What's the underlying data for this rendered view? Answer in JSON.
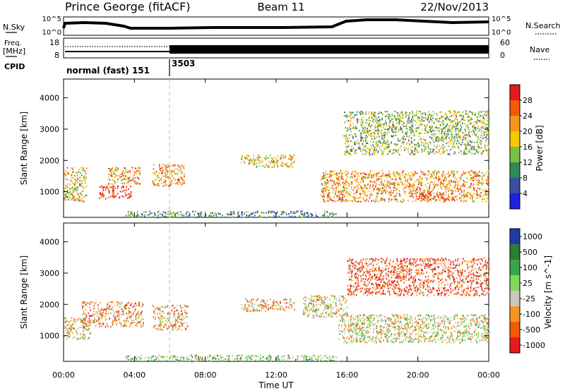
{
  "header": {
    "station": "Prince George (fitACF)",
    "beam": "Beam 11",
    "date": "22/Nov/2013"
  },
  "strips": {
    "nsky_label": "N.Sky",
    "nsearch_label": "N.Search",
    "freq_label_1": "Freq.",
    "freq_label_2": "[MHz]",
    "nave_label": "Nave",
    "cpid_label": "CPID",
    "count_ticks": [
      "10^5",
      "10^0"
    ],
    "freq_ticks": [
      "18",
      "8"
    ],
    "nave_ticks": [
      "60",
      "0"
    ],
    "cpid_1": "normal (fast) 151",
    "cpid_2": "3503"
  },
  "chart_data": [
    {
      "type": "heatmap",
      "title": "",
      "xlabel": "Time UT",
      "ylabel": "Slant Range [km]",
      "colorbar_label": "Power [dB]",
      "x_ticks": [
        "00:00",
        "04:00",
        "08:00",
        "12:00",
        "16:00",
        "20:00",
        "00:00"
      ],
      "y_ticks": [
        1000,
        2000,
        3000,
        4000
      ],
      "xlim_hours": [
        0,
        24
      ],
      "ylim_km": [
        180,
        4600
      ],
      "colorbar_ticks": [
        "28",
        "24",
        "20",
        "16",
        "12",
        "8",
        "4"
      ],
      "colorbar_colors": [
        "#e41a1c",
        "#f05a0a",
        "#f7941d",
        "#f5c800",
        "#7ac143",
        "#2e8b57",
        "#3a4fa0",
        "#2020e0"
      ],
      "scatter_regions": [
        {
          "t": [
            0.0,
            1.3
          ],
          "r": [
            700,
            1800
          ],
          "level": 4
        },
        {
          "t": [
            2.0,
            3.8
          ],
          "r": [
            800,
            1200
          ],
          "level": 7
        },
        {
          "t": [
            2.5,
            4.3
          ],
          "r": [
            1250,
            1800
          ],
          "level": 5
        },
        {
          "t": [
            5.0,
            6.8
          ],
          "r": [
            1200,
            1900
          ],
          "level": 5
        },
        {
          "t": [
            14.5,
            24.0
          ],
          "r": [
            700,
            1700
          ],
          "level": 5
        },
        {
          "t": [
            20.0,
            22.0
          ],
          "r": [
            750,
            1000
          ],
          "level": 7
        },
        {
          "t": [
            15.8,
            24.0
          ],
          "r": [
            2200,
            3600
          ],
          "level": 3
        },
        {
          "t": [
            10.0,
            13.0
          ],
          "r": [
            1800,
            2200
          ],
          "level": 4
        },
        {
          "t": [
            3.5,
            15.5
          ],
          "r": [
            200,
            400
          ],
          "level": 2
        }
      ]
    },
    {
      "type": "heatmap",
      "title": "",
      "xlabel": "Time UT",
      "ylabel": "Slant Range [km]",
      "colorbar_label": "Velocity [m s^-1]",
      "x_ticks": [
        "00:00",
        "04:00",
        "08:00",
        "12:00",
        "16:00",
        "20:00",
        "00:00"
      ],
      "y_ticks": [
        1000,
        2000,
        3000,
        4000
      ],
      "xlim_hours": [
        0,
        24
      ],
      "ylim_km": [
        180,
        4600
      ],
      "colorbar_ticks": [
        "1000",
        "500",
        "100",
        "25",
        "-25",
        "-100",
        "-500",
        "-1000"
      ],
      "colorbar_colors": [
        "#1f3aa8",
        "#2e7d32",
        "#3aa64a",
        "#7ed957",
        "#c8c8c0",
        "#f7941d",
        "#f05a0a",
        "#e41a1c"
      ],
      "scatter_regions": [
        {
          "t": [
            0.0,
            1.5
          ],
          "r": [
            900,
            1600
          ],
          "level": 4
        },
        {
          "t": [
            1.0,
            4.5
          ],
          "r": [
            1300,
            2100
          ],
          "level": 5
        },
        {
          "t": [
            5.0,
            7.0
          ],
          "r": [
            1200,
            2000
          ],
          "level": 5
        },
        {
          "t": [
            15.5,
            24.0
          ],
          "r": [
            800,
            1700
          ],
          "level": 4
        },
        {
          "t": [
            16.0,
            24.0
          ],
          "r": [
            2300,
            3500
          ],
          "level": 6
        },
        {
          "t": [
            10.0,
            13.0
          ],
          "r": [
            1800,
            2200
          ],
          "level": 5
        },
        {
          "t": [
            13.5,
            16.0
          ],
          "r": [
            1600,
            2300
          ],
          "level": 4
        },
        {
          "t": [
            3.5,
            15.5
          ],
          "r": [
            200,
            400
          ],
          "level": 3
        }
      ]
    }
  ]
}
